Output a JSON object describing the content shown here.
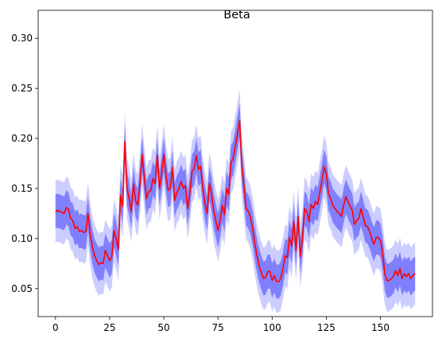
{
  "chart_data": {
    "type": "line",
    "title": "Beta",
    "xlabel": "",
    "ylabel": "",
    "xlim": [
      -8,
      174
    ],
    "ylim": [
      0.022,
      0.328
    ],
    "xticks": [
      0,
      25,
      50,
      75,
      100,
      125,
      150
    ],
    "yticks": [
      0.05,
      0.1,
      0.15,
      0.2,
      0.25,
      0.3
    ],
    "ytick_labels": [
      "0.05",
      "0.10",
      "0.15",
      "0.20",
      "0.25",
      "0.30"
    ],
    "grid": false,
    "colors": {
      "mean": "#ff0000",
      "inner_band": "#8080ff",
      "outer_band": "#cccdff"
    },
    "x": [
      0,
      1,
      2,
      3,
      4,
      5,
      6,
      7,
      8,
      9,
      10,
      11,
      12,
      13,
      14,
      15,
      16,
      17,
      18,
      19,
      20,
      21,
      22,
      23,
      24,
      25,
      26,
      27,
      28,
      29,
      30,
      31,
      32,
      33,
      34,
      35,
      36,
      37,
      38,
      39,
      40,
      41,
      42,
      43,
      44,
      45,
      46,
      47,
      48,
      49,
      50,
      51,
      52,
      53,
      54,
      55,
      56,
      57,
      58,
      59,
      60,
      61,
      62,
      63,
      64,
      65,
      66,
      67,
      68,
      69,
      70,
      71,
      72,
      73,
      74,
      75,
      76,
      77,
      78,
      79,
      80,
      81,
      82,
      83,
      84,
      85,
      86,
      87,
      88,
      89,
      90,
      91,
      92,
      93,
      94,
      95,
      96,
      97,
      98,
      99,
      100,
      101,
      102,
      103,
      104,
      105,
      106,
      107,
      108,
      109,
      110,
      111,
      112,
      113,
      114,
      115,
      116,
      117,
      118,
      119,
      120,
      121,
      122,
      123,
      124,
      125,
      126,
      127,
      128,
      129,
      130,
      131,
      132,
      133,
      134,
      135,
      136,
      137,
      138,
      139,
      140,
      141,
      142,
      143,
      144,
      145,
      146,
      147,
      148,
      149,
      150,
      151,
      152,
      153,
      154,
      155,
      156,
      157,
      158,
      159,
      160,
      161,
      162,
      163,
      164,
      165,
      166
    ],
    "series": [
      {
        "role": "mean",
        "values": [
          0.127,
          0.128,
          0.127,
          0.126,
          0.125,
          0.131,
          0.129,
          0.12,
          0.118,
          0.11,
          0.112,
          0.107,
          0.108,
          0.106,
          0.107,
          0.125,
          0.105,
          0.092,
          0.083,
          0.078,
          0.074,
          0.076,
          0.075,
          0.088,
          0.083,
          0.078,
          0.082,
          0.108,
          0.1,
          0.089,
          0.143,
          0.132,
          0.197,
          0.15,
          0.14,
          0.127,
          0.155,
          0.138,
          0.133,
          0.155,
          0.184,
          0.161,
          0.14,
          0.147,
          0.148,
          0.16,
          0.155,
          0.183,
          0.15,
          0.165,
          0.184,
          0.163,
          0.148,
          0.15,
          0.171,
          0.138,
          0.146,
          0.15,
          0.157,
          0.15,
          0.153,
          0.13,
          0.145,
          0.167,
          0.17,
          0.183,
          0.169,
          0.172,
          0.15,
          0.135,
          0.125,
          0.155,
          0.145,
          0.128,
          0.118,
          0.108,
          0.118,
          0.133,
          0.124,
          0.15,
          0.144,
          0.176,
          0.18,
          0.192,
          0.205,
          0.218,
          0.172,
          0.153,
          0.13,
          0.127,
          0.121,
          0.11,
          0.095,
          0.083,
          0.073,
          0.066,
          0.06,
          0.061,
          0.067,
          0.067,
          0.058,
          0.063,
          0.057,
          0.057,
          0.06,
          0.07,
          0.083,
          0.081,
          0.101,
          0.092,
          0.117,
          0.088,
          0.122,
          0.082,
          0.1,
          0.13,
          0.127,
          0.117,
          0.134,
          0.13,
          0.137,
          0.134,
          0.146,
          0.158,
          0.172,
          0.165,
          0.145,
          0.14,
          0.133,
          0.13,
          0.127,
          0.125,
          0.122,
          0.133,
          0.142,
          0.137,
          0.132,
          0.128,
          0.114,
          0.118,
          0.12,
          0.13,
          0.122,
          0.113,
          0.112,
          0.107,
          0.1,
          0.094,
          0.101,
          0.101,
          0.098,
          0.085,
          0.065,
          0.058,
          0.058,
          0.06,
          0.062,
          0.068,
          0.063,
          0.07,
          0.06,
          0.065,
          0.062,
          0.065,
          0.06,
          0.063,
          0.065
        ]
      },
      {
        "role": "inner_lower",
        "offsets": 0.017
      },
      {
        "role": "inner_upper",
        "offsets": 0.017
      },
      {
        "role": "outer_lower",
        "offsets": 0.031
      },
      {
        "role": "outer_upper",
        "offsets": 0.031
      }
    ]
  }
}
